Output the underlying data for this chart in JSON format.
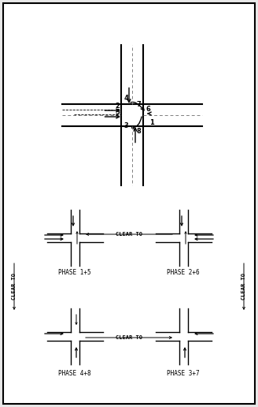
{
  "title": "",
  "bg_color": "#f0f0f0",
  "border_color": "#000000",
  "line_color": "#000000",
  "road_color": "#000000",
  "phases": [
    "1+5",
    "2+6",
    "4+8",
    "3+7"
  ],
  "phase_labels": [
    "PHASE 1+5",
    "PHASE 2+6",
    "PHASE 4+8",
    "PHASE 3+7"
  ],
  "clear_to_labels": [
    "CLEAR TO",
    "CLEAR TO",
    "CLEAR TO"
  ],
  "font_size": 5.5
}
